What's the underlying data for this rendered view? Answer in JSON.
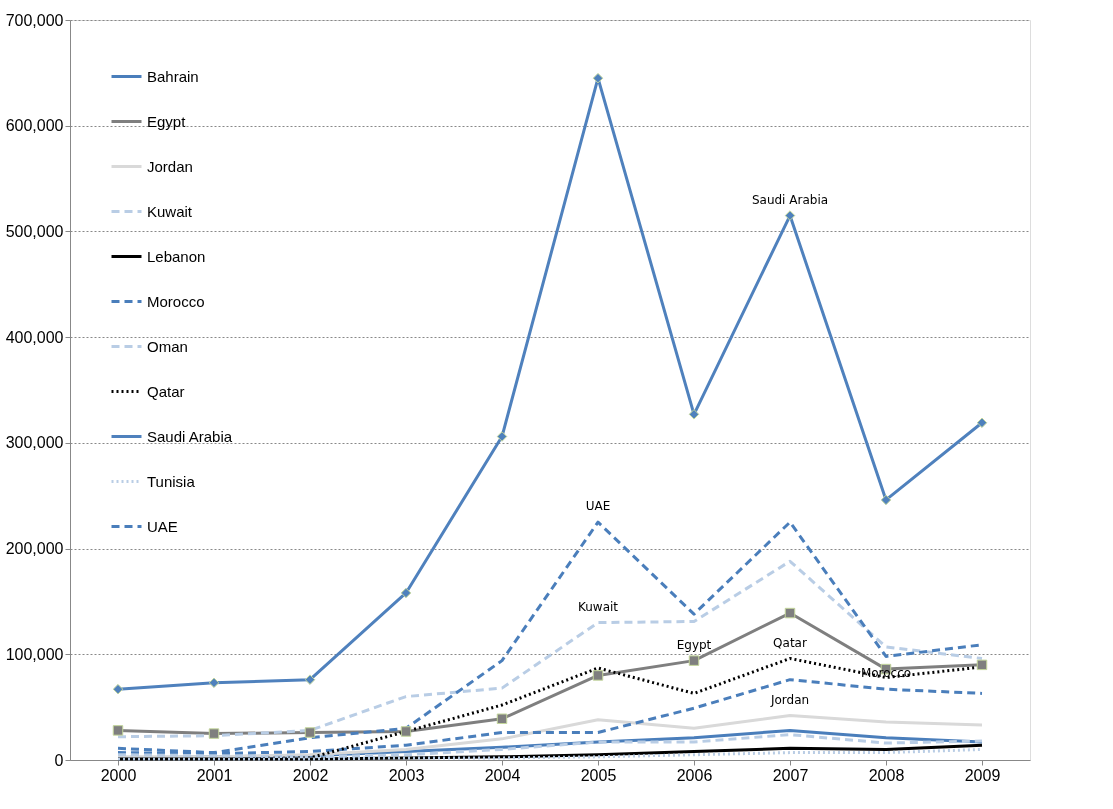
{
  "chart_data": {
    "type": "line",
    "categories": [
      "2000",
      "2001",
      "2002",
      "2003",
      "2004",
      "2005",
      "2006",
      "2007",
      "2008",
      "2009"
    ],
    "ylim": [
      0,
      700000
    ],
    "yticks": [
      0,
      {
        "value": 100000,
        "label": "100,000"
      },
      {
        "value": 200000,
        "label": "200,000"
      },
      {
        "value": 300000,
        "label": "300,000"
      },
      {
        "value": 400000,
        "label": "400,000"
      },
      {
        "value": 500000,
        "label": "500,000"
      },
      {
        "value": 600000,
        "label": "600,000"
      },
      {
        "value": 700000,
        "label": "700,000"
      }
    ],
    "grid": "y",
    "legend": "top left",
    "series": [
      {
        "name": "Bahrain",
        "color": "#4a7ebb",
        "line_style": "solid",
        "marker": "none",
        "values": [
          2000,
          3000,
          4000,
          8000,
          12000,
          17000,
          21000,
          28000,
          21000,
          17000
        ]
      },
      {
        "name": "Egypt",
        "color": "#7f7f7f",
        "line_style": "solid",
        "marker": "square",
        "values": [
          28000,
          25000,
          26000,
          27000,
          39000,
          80000,
          94000,
          139000,
          86000,
          90000
        ]
      },
      {
        "name": "Jordan",
        "color": "#d9d9d9",
        "line_style": "solid",
        "marker": "none",
        "values": [
          3000,
          3000,
          5000,
          10000,
          20000,
          38000,
          30000,
          42000,
          36000,
          33000
        ]
      },
      {
        "name": "Kuwait",
        "color": "#b9cde5",
        "line_style": "dashed",
        "marker": "none",
        "values": [
          22000,
          23000,
          28000,
          60000,
          68000,
          130000,
          131000,
          188000,
          107000,
          96000
        ]
      },
      {
        "name": "Lebanon",
        "color": "#000000",
        "line_style": "solid",
        "marker": "none",
        "values": [
          1000,
          1000,
          1000,
          2000,
          3000,
          5000,
          8000,
          11000,
          10000,
          14000
        ]
      },
      {
        "name": "Morocco",
        "color": "#4a7ebb",
        "line_style": "dashed",
        "marker": "none",
        "values": [
          7000,
          6000,
          8000,
          14000,
          26000,
          26000,
          49000,
          76000,
          67000,
          63000
        ]
      },
      {
        "name": "Oman",
        "color": "#b9cde5",
        "line_style": "dashed",
        "marker": "none",
        "values": [
          5000,
          4000,
          3000,
          5000,
          10000,
          17000,
          17000,
          24000,
          16000,
          18000
        ]
      },
      {
        "name": "Qatar",
        "color": "#000000",
        "line_style": "dotted",
        "marker": "none",
        "values": [
          1000,
          1000,
          2000,
          27000,
          52000,
          87000,
          63000,
          96000,
          78000,
          88000
        ]
      },
      {
        "name": "Saudi Arabia",
        "color": "#4f81bd",
        "line_style": "solid",
        "marker": "diamond",
        "values": [
          67000,
          73000,
          76000,
          158000,
          306000,
          645000,
          327000,
          515000,
          246000,
          319000
        ]
      },
      {
        "name": "Tunisia",
        "color": "#b9cde5",
        "line_style": "dotted",
        "marker": "none",
        "values": [
          1000,
          1000,
          1000,
          2000,
          2000,
          3000,
          5000,
          7000,
          7000,
          10000
        ]
      },
      {
        "name": "UAE",
        "color": "#4a7ebb",
        "line_style": "dashed",
        "marker": "none",
        "values": [
          11000,
          7000,
          21000,
          30000,
          94000,
          225000,
          138000,
          225000,
          98000,
          109000
        ]
      }
    ],
    "annotations": [
      {
        "text": "Saudi Arabia",
        "x": "2007",
        "y": 515000
      },
      {
        "text": "UAE",
        "x": "2005",
        "y": 225000
      },
      {
        "text": "Kuwait",
        "x": "2005",
        "y": 130000
      },
      {
        "text": "Egypt",
        "x": "2006",
        "y": 94000
      },
      {
        "text": "Qatar",
        "x": "2007",
        "y": 96000
      },
      {
        "text": "Jordan",
        "x": "2007",
        "y": 42000
      },
      {
        "text": "Morocco",
        "x": "2008",
        "y": 67000
      }
    ]
  }
}
